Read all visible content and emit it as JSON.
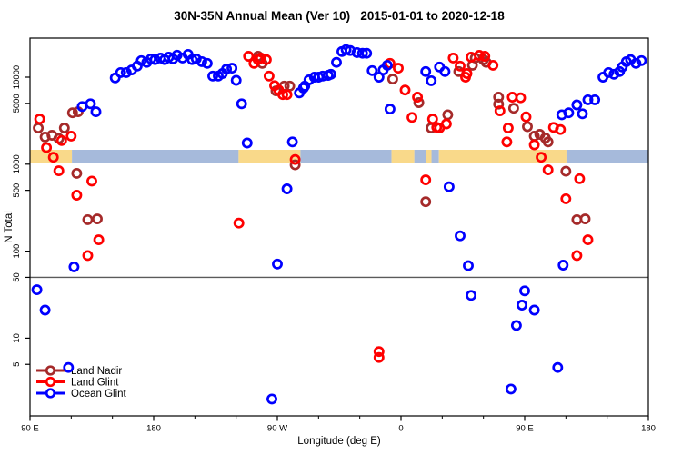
{
  "chart": {
    "title": "30N-35N Annual Mean (Ver 10)   2015-01-01 to 2020-12-18",
    "x_axis": {
      "label": "Longitude (deg E)",
      "domain": [
        90,
        540
      ],
      "minor_tick_step": 30,
      "major_ticks": [
        {
          "lon": 90,
          "label": "90 E"
        },
        {
          "lon": 180,
          "label": "180"
        },
        {
          "lon": 270,
          "label": "90 W"
        },
        {
          "lon": 360,
          "label": "0"
        },
        {
          "lon": 450,
          "label": "90 E"
        },
        {
          "lon": 540,
          "label": "180"
        }
      ]
    },
    "y_axis": {
      "label": "N Total",
      "scale": "log",
      "ticks": [
        10000,
        5000,
        1000,
        500,
        100,
        50,
        10,
        5
      ],
      "range": [
        1.2,
        28000
      ]
    },
    "reference_line": {
      "value": 50,
      "color": "#5a5a5a"
    },
    "map_strip": {
      "description": "world map band 30N-35N drawn across plot between N=1000 and N=1500",
      "ocean_color": "#a6badb",
      "land_color": "#f9d98a",
      "segments": [
        {
          "type": "land",
          "from": 90,
          "to": 120.5
        },
        {
          "type": "ocean",
          "from": 120.5,
          "to": 241.8
        },
        {
          "type": "land",
          "from": 241.8,
          "to": 286.8
        },
        {
          "type": "ocean",
          "from": 286.8,
          "to": 353.1
        },
        {
          "type": "land",
          "from": 353.1,
          "to": 369.7
        },
        {
          "type": "ocean",
          "from": 369.7,
          "to": 378.3
        },
        {
          "type": "land",
          "from": 378.3,
          "to": 382.2
        },
        {
          "type": "ocean",
          "from": 382.2,
          "to": 387.6
        },
        {
          "type": "land",
          "from": 387.6,
          "to": 480.4
        },
        {
          "type": "ocean",
          "from": 480.4,
          "to": 540
        }
      ]
    },
    "legend": {
      "items": [
        {
          "label": "Land Nadir",
          "color": "#a52a2a"
        },
        {
          "label": "Land Glint",
          "color": "#ff0000"
        },
        {
          "label": "Ocean Glint",
          "color": "#0000ff"
        }
      ]
    }
  },
  "chart_data": {
    "type": "scatter",
    "marker": "open-circle",
    "x_units": "longitude axis runs 90E eastward through 180, 90W, 0, 90E to 180 (90..540)",
    "y_units": "N Total (log10 scale)",
    "series": [
      {
        "name": "Land Nadir",
        "color": "#a52a2a",
        "points": [
          [
            96,
            2600
          ],
          [
            101,
            2050
          ],
          [
            106,
            2150
          ],
          [
            111,
            1970
          ],
          [
            115,
            2600
          ],
          [
            121,
            3900
          ],
          [
            124,
            785
          ],
          [
            125,
            4000
          ],
          [
            132,
            230
          ],
          [
            139,
            235
          ],
          [
            256,
            17400
          ],
          [
            259,
            14400
          ],
          [
            269,
            6950
          ],
          [
            275,
            7900
          ],
          [
            279,
            7900
          ],
          [
            283,
            980
          ],
          [
            354,
            9500
          ],
          [
            373,
            5100
          ],
          [
            378,
            370
          ],
          [
            382,
            2600
          ],
          [
            394,
            3700
          ],
          [
            402,
            11600
          ],
          [
            412,
            13700
          ],
          [
            414,
            16600
          ],
          [
            420,
            15900
          ],
          [
            422,
            14800
          ],
          [
            431,
            5900
          ],
          [
            431,
            4900
          ],
          [
            442,
            4400
          ],
          [
            452,
            2700
          ],
          [
            457,
            2100
          ],
          [
            461,
            2200
          ],
          [
            465,
            2000
          ],
          [
            467,
            1800
          ],
          [
            480,
            830
          ],
          [
            488,
            230
          ],
          [
            494,
            235
          ]
        ]
      },
      {
        "name": "Land Glint",
        "color": "#ff0000",
        "points": [
          [
            97,
            3300
          ],
          [
            102,
            1550
          ],
          [
            107,
            1200
          ],
          [
            111,
            840
          ],
          [
            113,
            1870
          ],
          [
            120,
            2100
          ],
          [
            124,
            440
          ],
          [
            132,
            89
          ],
          [
            135,
            640
          ],
          [
            140,
            135
          ],
          [
            242,
            210
          ],
          [
            249,
            17400
          ],
          [
            253,
            14400
          ],
          [
            256,
            15900
          ],
          [
            258,
            16600
          ],
          [
            262,
            15900
          ],
          [
            264,
            10300
          ],
          [
            268,
            8000
          ],
          [
            271,
            7100
          ],
          [
            274,
            6300
          ],
          [
            277,
            6300
          ],
          [
            283,
            1130
          ],
          [
            344,
            7.0
          ],
          [
            344,
            6.0
          ],
          [
            352,
            14400
          ],
          [
            358,
            12700
          ],
          [
            363,
            7100
          ],
          [
            368,
            3450
          ],
          [
            372,
            5900
          ],
          [
            378,
            660
          ],
          [
            383,
            3300
          ],
          [
            386,
            2650
          ],
          [
            388,
            2600
          ],
          [
            393,
            2900
          ],
          [
            398,
            16600
          ],
          [
            403,
            13400
          ],
          [
            407,
            10000
          ],
          [
            408,
            11000
          ],
          [
            411,
            17000
          ],
          [
            417,
            17800
          ],
          [
            421,
            17400
          ],
          [
            427,
            13700
          ],
          [
            432,
            4100
          ],
          [
            437,
            1800
          ],
          [
            438,
            2600
          ],
          [
            441,
            5900
          ],
          [
            447,
            5800
          ],
          [
            451,
            3500
          ],
          [
            457,
            1670
          ],
          [
            462,
            1200
          ],
          [
            467,
            860
          ],
          [
            471,
            2650
          ],
          [
            476,
            2500
          ],
          [
            480,
            400
          ],
          [
            488,
            89
          ],
          [
            490,
            680
          ],
          [
            496,
            135
          ]
        ]
      },
      {
        "name": "Ocean Glint",
        "color": "#0000ff",
        "points": [
          [
            95,
            36
          ],
          [
            101,
            21
          ],
          [
            118,
            4.6
          ],
          [
            122,
            66
          ],
          [
            128,
            4600
          ],
          [
            134,
            4950
          ],
          [
            138,
            4000
          ],
          [
            152,
            9800
          ],
          [
            156,
            11300
          ],
          [
            160,
            11300
          ],
          [
            164,
            12100
          ],
          [
            168,
            13400
          ],
          [
            171,
            15500
          ],
          [
            175,
            14800
          ],
          [
            178,
            16200
          ],
          [
            181,
            15900
          ],
          [
            185,
            16600
          ],
          [
            188,
            15900
          ],
          [
            191,
            17000
          ],
          [
            194,
            16200
          ],
          [
            197,
            17900
          ],
          [
            201,
            16600
          ],
          [
            205,
            18300
          ],
          [
            208,
            15900
          ],
          [
            211,
            16200
          ],
          [
            215,
            15100
          ],
          [
            219,
            14400
          ],
          [
            223,
            10300
          ],
          [
            227,
            10300
          ],
          [
            230,
            11000
          ],
          [
            233,
            12400
          ],
          [
            237,
            12700
          ],
          [
            240,
            9200
          ],
          [
            244,
            4950
          ],
          [
            248,
            1750
          ],
          [
            266,
            2.0
          ],
          [
            270,
            71
          ],
          [
            277,
            520
          ],
          [
            281,
            1800
          ],
          [
            286,
            6600
          ],
          [
            289,
            7500
          ],
          [
            290,
            7900
          ],
          [
            293,
            9300
          ],
          [
            297,
            10000
          ],
          [
            300,
            10000
          ],
          [
            303,
            10300
          ],
          [
            307,
            10500
          ],
          [
            309,
            10800
          ],
          [
            313,
            14800
          ],
          [
            317,
            19700
          ],
          [
            320,
            20700
          ],
          [
            323,
            20200
          ],
          [
            328,
            19200
          ],
          [
            332,
            18800
          ],
          [
            335,
            18800
          ],
          [
            339,
            11900
          ],
          [
            344,
            10000
          ],
          [
            347,
            12100
          ],
          [
            350,
            13700
          ],
          [
            352,
            4300
          ],
          [
            378,
            11600
          ],
          [
            382,
            9100
          ],
          [
            388,
            13100
          ],
          [
            392,
            11600
          ],
          [
            395,
            550
          ],
          [
            403,
            150
          ],
          [
            409,
            68
          ],
          [
            411,
            31
          ],
          [
            440,
            2.6
          ],
          [
            444,
            14
          ],
          [
            448,
            24
          ],
          [
            450,
            35
          ],
          [
            457,
            21
          ],
          [
            474,
            4.6
          ],
          [
            477,
            3700
          ],
          [
            478,
            69
          ],
          [
            482,
            3900
          ],
          [
            488,
            4800
          ],
          [
            492,
            3800
          ],
          [
            496,
            5500
          ],
          [
            501,
            5500
          ],
          [
            507,
            10000
          ],
          [
            511,
            11300
          ],
          [
            515,
            10800
          ],
          [
            519,
            11600
          ],
          [
            521,
            13100
          ],
          [
            524,
            15100
          ],
          [
            527,
            15900
          ],
          [
            531,
            14400
          ],
          [
            535,
            15500
          ]
        ]
      }
    ]
  }
}
